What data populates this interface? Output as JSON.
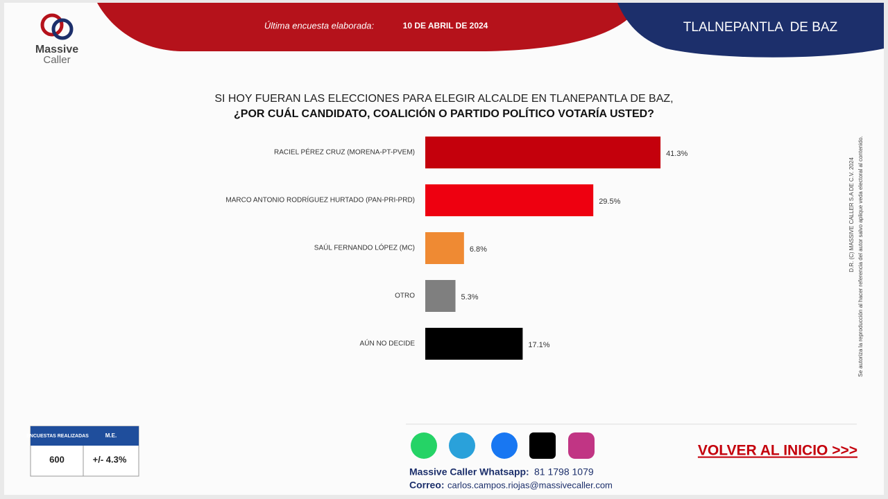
{
  "header": {
    "brand_top": "Massive",
    "brand_bottom": "Caller",
    "survey_label": "Última encuesta elaborada:",
    "survey_date": "10 DE ABRIL DE 2024",
    "location": "TLALNEPANTLA  DE BAZ"
  },
  "chart_data": {
    "type": "bar",
    "orientation": "horizontal",
    "title": "SI HOY FUERAN LAS ELECCIONES PARA ELEGIR ALCALDE EN TLANEPANTLA DE BAZ,",
    "subtitle": "¿POR CUÁL CANDIDATO, COALICIÓN O PARTIDO POLÍTICO VOTARÍA USTED?",
    "categories": [
      "RACIEL PÉREZ CRUZ (MORENA-PT-PVEM)",
      "MARCO ANTONIO RODRÍGUEZ HURTADO (PAN-PRI-PRD)",
      "SAÚL FERNANDO LÓPEZ (MC)",
      "OTRO",
      "AÚN NO DECIDE"
    ],
    "values": [
      41.3,
      29.5,
      6.8,
      5.3,
      17.1
    ],
    "value_labels": [
      "41.3%",
      "29.5%",
      "6.8%",
      "5.3%",
      "17.1%"
    ],
    "colors": [
      "#c4000c",
      "#ee0010",
      "#ef8a33",
      "#7f7f7f",
      "#000000"
    ]
  },
  "side_note": {
    "line1": "D.R. (C) MASSIVE CALLER S.A DE C.V. 2024",
    "line2": "Se autoriza la reproducción al hacer referencia del autor salvo aplique veda electoral al contenido."
  },
  "sample_box": {
    "headers": [
      "ENCUESTAS REALIZADAS",
      "M.E."
    ],
    "values": [
      "600",
      "+/- 4.3%"
    ]
  },
  "footer": {
    "whatsapp_label": "Massive Caller Whatsapp:",
    "whatsapp_number": "81 1798 1079",
    "email_label": "Correo:",
    "email": "carlos.campos.riojas@massivecaller.com",
    "link": "VOLVER AL INICIO >>>"
  }
}
